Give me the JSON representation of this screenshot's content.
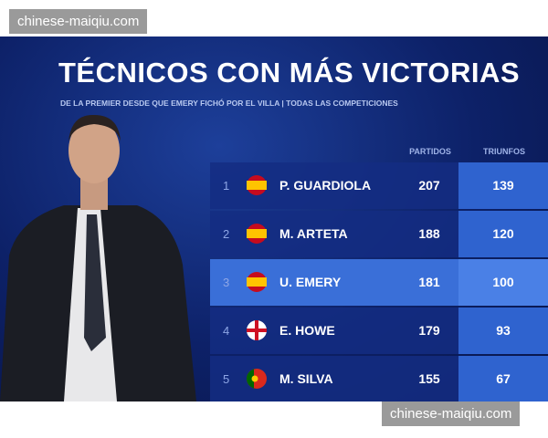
{
  "watermarks": [
    "chinese-maiqiu.com",
    "chinese-maiqiu.com"
  ],
  "header": {
    "title": "TÉCNICOS CON MÁS VICTORIAS",
    "subtitle": "DE LA PREMIER DESDE QUE EMERY FICHÓ POR EL VILLA | TODAS LAS COMPETICIONES"
  },
  "table": {
    "columns": [
      "PARTIDOS",
      "TRIUNFOS"
    ],
    "rows": [
      {
        "rank": 1,
        "name": "P. GUARDIOLA",
        "partidos": 207,
        "triunfos": 139
      },
      {
        "rank": 2,
        "name": "M. ARTETA",
        "partidos": 188,
        "triunfos": 120
      },
      {
        "rank": 3,
        "name": "U. EMERY",
        "partidos": 181,
        "triunfos": 100
      },
      {
        "rank": 4,
        "name": "E. HOWE",
        "partidos": 179,
        "triunfos": 93
      },
      {
        "rank": 5,
        "name": "M. SILVA",
        "partidos": 155,
        "triunfos": 67
      }
    ]
  }
}
